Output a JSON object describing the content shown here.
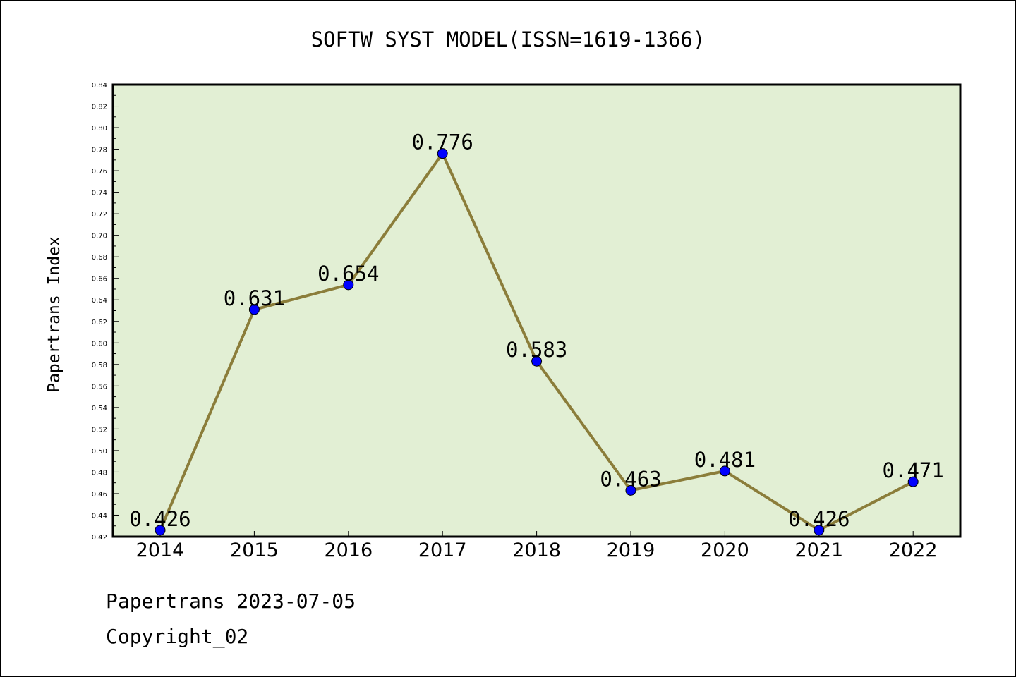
{
  "chart_data": {
    "type": "line",
    "title": "SOFTW SYST MODEL(ISSN=1619-1366)",
    "xlabel": "",
    "ylabel": "Papertrans Index",
    "categories": [
      "2014",
      "2015",
      "2016",
      "2017",
      "2018",
      "2019",
      "2020",
      "2021",
      "2022"
    ],
    "series": [
      {
        "values": [
          0.426,
          0.631,
          0.654,
          0.776,
          0.583,
          0.463,
          0.481,
          0.426,
          0.471
        ],
        "data_labels": [
          "0.426",
          "0.631",
          "0.654",
          "0.776",
          "0.583",
          "0.463",
          "0.481",
          "0.426",
          "0.471"
        ]
      }
    ],
    "ylim": [
      0.42,
      0.84
    ],
    "yticks": [
      "0.42",
      "0.44",
      "0.46",
      "0.48",
      "0.50",
      "0.52",
      "0.54",
      "0.56",
      "0.58",
      "0.60",
      "0.62",
      "0.64",
      "0.66",
      "0.68",
      "0.70",
      "0.72",
      "0.74",
      "0.76",
      "0.78",
      "0.80",
      "0.82",
      "0.84"
    ],
    "grid": false,
    "colors": {
      "plot_background": "#e2efd4",
      "line": "#8b7d3a",
      "marker": "#0000ff"
    }
  },
  "footer": {
    "line1": "Papertrans 2023-07-05",
    "line2": "Copyright_02"
  }
}
